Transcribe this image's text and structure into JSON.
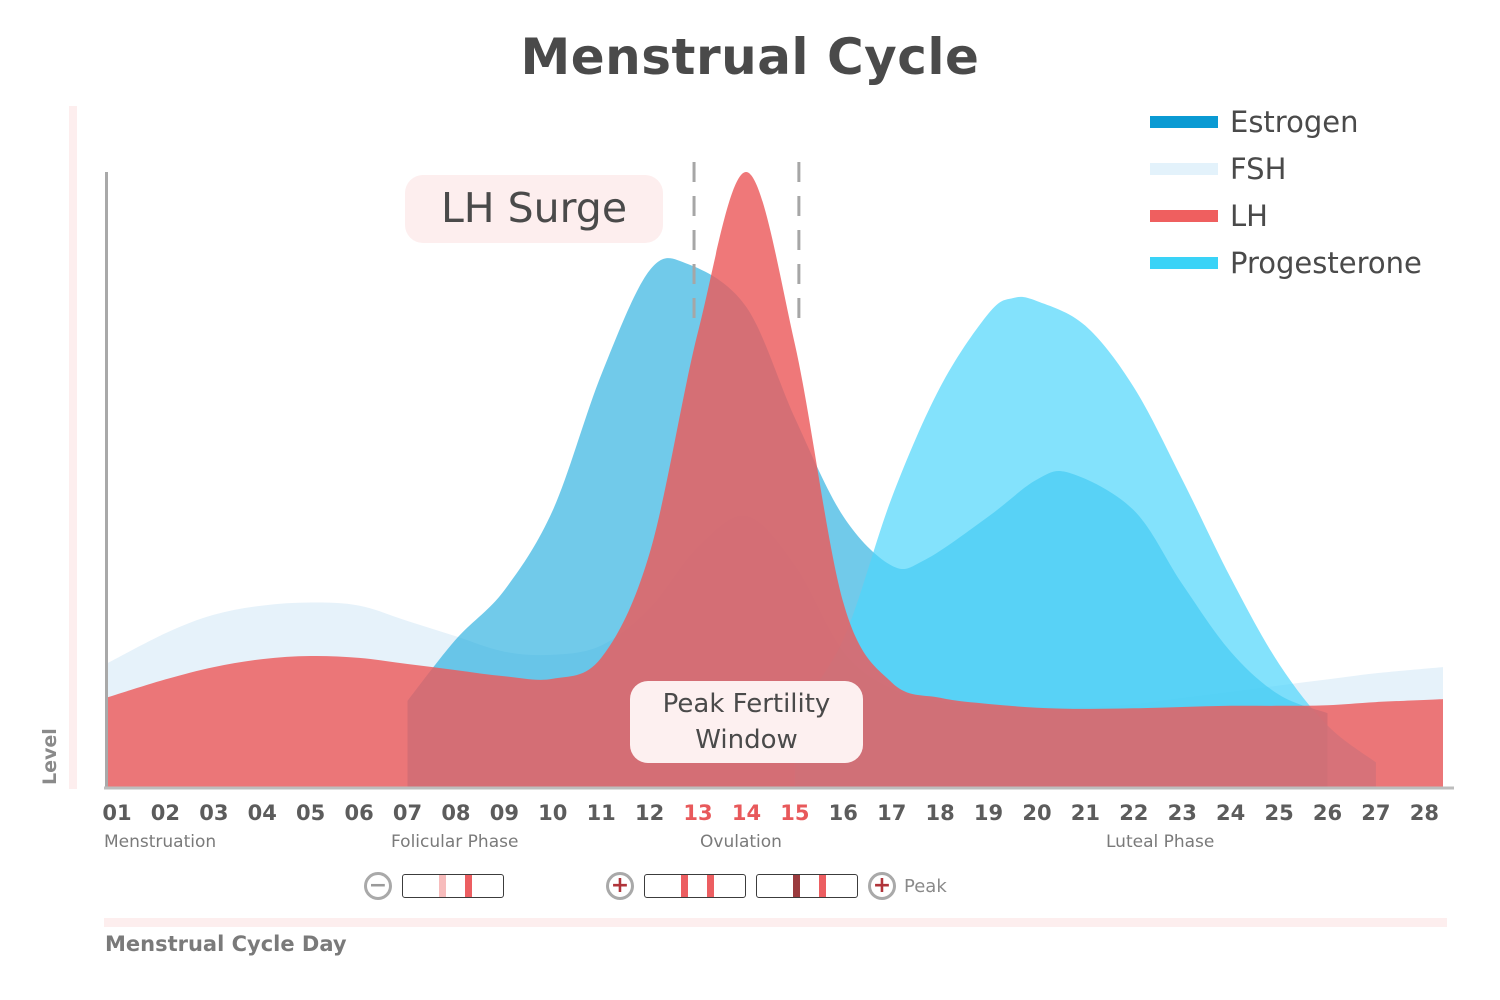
{
  "title": "Menstrual Cycle",
  "chart_data": {
    "type": "area",
    "title": "Menstrual Cycle",
    "xlabel": "Menstrual Cycle Day",
    "ylabel": "Level",
    "x_ticks": [
      "01",
      "02",
      "03",
      "04",
      "05",
      "06",
      "07",
      "08",
      "09",
      "10",
      "11",
      "12",
      "13",
      "14",
      "15",
      "16",
      "17",
      "18",
      "19",
      "20",
      "21",
      "22",
      "23",
      "24",
      "25",
      "26",
      "27",
      "28"
    ],
    "highlighted_ticks": [
      "13",
      "14",
      "15"
    ],
    "xlim": [
      1,
      28
    ],
    "ylim": [
      0,
      100
    ],
    "grid": false,
    "legend_position": "top-right",
    "phases": [
      {
        "label": "Menstruation",
        "start_day": 1
      },
      {
        "label": "Folicular Phase",
        "start_day": 7
      },
      {
        "label": "Ovulation",
        "start_day": 13
      },
      {
        "label": "Luteal Phase",
        "start_day": 21
      }
    ],
    "series": [
      {
        "name": "FSH",
        "color": "#e3f2fb",
        "x": [
          1,
          2,
          3,
          4,
          5,
          6,
          7,
          8,
          9,
          10,
          11,
          12,
          13,
          14,
          15,
          16,
          17,
          18,
          19,
          20,
          21,
          22,
          23,
          24,
          25,
          26,
          27,
          28
        ],
        "values": [
          20,
          25,
          28,
          29.5,
          30,
          29.5,
          27,
          24.5,
          22,
          21.5,
          23,
          29,
          39,
          44,
          36,
          22,
          16,
          14,
          13.2,
          13,
          13,
          13.5,
          14.5,
          15.5,
          16.5,
          17.5,
          18.5,
          19.5
        ]
      },
      {
        "name": "Estrogen",
        "color": "#0a9ad3",
        "x": [
          7,
          8,
          9,
          10,
          11,
          12,
          12.8,
          14,
          15,
          16,
          17,
          17.7,
          19,
          20,
          20.7,
          22,
          23,
          24,
          25,
          26
        ],
        "values": [
          14,
          24,
          32,
          45,
          67,
          84,
          85,
          78,
          60,
          44,
          36,
          37,
          44,
          50,
          51,
          45,
          33,
          22,
          15,
          12
        ]
      },
      {
        "name": "LH",
        "color": "#ef5f5f",
        "x": [
          1,
          2,
          3,
          4,
          5,
          6,
          7,
          8,
          9,
          10,
          11,
          12,
          13,
          14,
          15,
          16,
          17,
          18,
          19,
          20,
          21,
          22,
          23,
          24,
          25,
          26,
          27,
          28
        ],
        "values": [
          14.5,
          17.5,
          19.5,
          20.8,
          21.3,
          21,
          20,
          19,
          18,
          17.6,
          21,
          38,
          74,
          100,
          72,
          30,
          17,
          14.5,
          13.5,
          12.9,
          12.7,
          12.8,
          13,
          13.2,
          13.2,
          13.3,
          13.8,
          14.3
        ]
      },
      {
        "name": "Progesterone",
        "color": "#3ad3f7",
        "x": [
          15,
          16,
          17,
          18,
          19,
          19.5,
          20,
          21,
          22,
          23,
          24,
          25,
          26,
          27
        ],
        "values": [
          12,
          24,
          47,
          65,
          77,
          79.5,
          79,
          75,
          65,
          50,
          34,
          20,
          10,
          4
        ]
      }
    ],
    "annotations": [
      {
        "text": "LH Surge",
        "day": 14
      },
      {
        "text": "Peak Fertility Window",
        "days": [
          13,
          15
        ]
      }
    ]
  },
  "legend": [
    {
      "label": "Estrogen",
      "color": "#0a9ad3"
    },
    {
      "label": "FSH",
      "color": "#e3f2fb"
    },
    {
      "label": "LH",
      "color": "#ef5f5f"
    },
    {
      "label": "Progesterone",
      "color": "#3ad3f7"
    }
  ],
  "annotations": {
    "lh_surge": "LH Surge",
    "peak_window_line1": "Peak Fertility",
    "peak_window_line2": "Window"
  },
  "phases": {
    "menstruation": "Menstruation",
    "follicular": "Folicular Phase",
    "ovulation": "Ovulation",
    "luteal": "Luteal Phase"
  },
  "ovulation_tests": {
    "negative_sign": "−",
    "positive_sign": "+",
    "peak_sign": "+",
    "peak_label": "Peak",
    "negative_strip_colors": [
      "#f7bcbc",
      "#ec5e61"
    ],
    "positive_strip_colors": [
      "#ec5e61",
      "#ec5e61"
    ],
    "peak_strip_colors": [
      "#9b3b3e",
      "#ec5e61"
    ]
  },
  "axis": {
    "y_label": "Level",
    "x_label": "Menstrual Cycle Day"
  }
}
